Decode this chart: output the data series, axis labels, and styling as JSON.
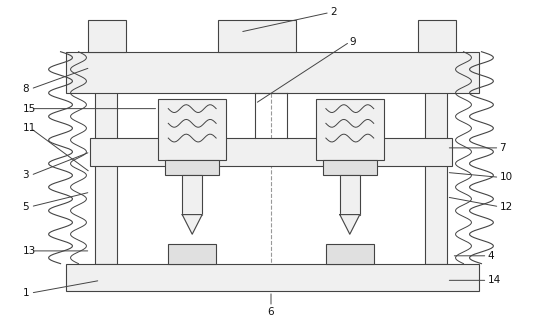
{
  "fig_width": 5.42,
  "fig_height": 3.19,
  "dpi": 100,
  "bg_color": "#ffffff",
  "line_color": "#444444",
  "line_width": 0.8,
  "face_color_light": "#f0f0f0",
  "face_color_mid": "#e0e0e0",
  "face_color_dark": "#d0d0d0"
}
